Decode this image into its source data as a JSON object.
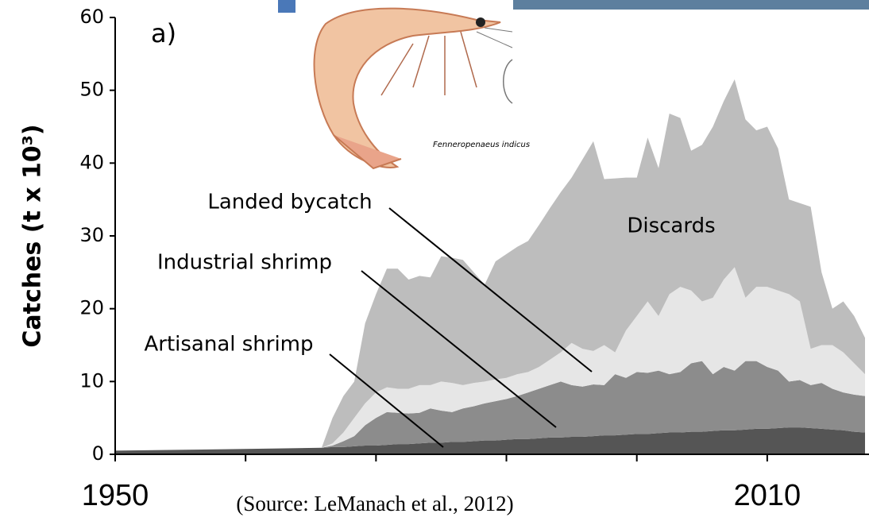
{
  "chart_data": {
    "type": "stacked_area",
    "ylabel": "Catches (t x 10³)",
    "annotations": [
      "a)",
      "Landed bycatch",
      "Industrial shrimp",
      "Artisanal shrimp",
      "Discards"
    ],
    "source": "(Source: LeManach et al., 2012)",
    "image_caption": "Fenneropenaeus indicus",
    "x": [
      1950,
      1955,
      1960,
      1965,
      1969,
      1970,
      1971,
      1972,
      1973,
      1974,
      1975,
      1976,
      1977,
      1978,
      1979,
      1980,
      1981,
      1982,
      1983,
      1984,
      1985,
      1986,
      1987,
      1988,
      1989,
      1990,
      1991,
      1992,
      1993,
      1994,
      1995,
      1996,
      1997,
      1998,
      1999,
      2000,
      2001,
      2002,
      2003,
      2004,
      2005,
      2006,
      2007,
      2008,
      2009,
      2010,
      2011,
      2012,
      2013,
      2014,
      2015,
      2016,
      2017,
      2018,
      2019
    ],
    "series": [
      {
        "name": "Artisanal shrimp",
        "color": "#555555",
        "values": [
          0.5,
          0.6,
          0.7,
          0.8,
          0.9,
          1.0,
          1.0,
          1.1,
          1.2,
          1.2,
          1.3,
          1.4,
          1.4,
          1.5,
          1.6,
          1.6,
          1.7,
          1.7,
          1.8,
          1.9,
          1.9,
          2.0,
          2.1,
          2.1,
          2.2,
          2.3,
          2.3,
          2.4,
          2.4,
          2.5,
          2.6,
          2.6,
          2.7,
          2.8,
          2.8,
          2.9,
          3.0,
          3.0,
          3.1,
          3.1,
          3.2,
          3.3,
          3.3,
          3.4,
          3.5,
          3.5,
          3.6,
          3.7,
          3.7,
          3.6,
          3.5,
          3.4,
          3.3,
          3.1,
          3.0
        ]
      },
      {
        "name": "Industrial shrimp",
        "color": "#8c8c8c",
        "values": [
          0,
          0,
          0,
          0,
          0,
          0.2,
          0.8,
          1.4,
          2.8,
          3.8,
          4.5,
          4.3,
          4.2,
          4.2,
          4.7,
          4.4,
          4.1,
          4.6,
          4.8,
          5.1,
          5.4,
          5.6,
          5.9,
          6.4,
          6.8,
          7.2,
          7.7,
          7.1,
          6.9,
          7.1,
          6.9,
          8.4,
          7.8,
          8.5,
          8.4,
          8.6,
          8.0,
          8.3,
          9.4,
          9.7,
          7.8,
          8.7,
          8.2,
          9.4,
          9.3,
          8.5,
          7.9,
          6.3,
          6.5,
          5.9,
          6.3,
          5.6,
          5.2,
          5.1,
          5.0
        ]
      },
      {
        "name": "Landed bycatch",
        "color": "#e6e6e6",
        "values": [
          0,
          0,
          0,
          0,
          0,
          0.3,
          1.2,
          2.5,
          3,
          3.5,
          3.4,
          3.3,
          3.4,
          3.8,
          3.2,
          4,
          4,
          3.2,
          3.2,
          3,
          3,
          2.9,
          3,
          2.8,
          3,
          3.5,
          4,
          5.8,
          5.2,
          4.6,
          5.5,
          3,
          6.5,
          7.7,
          9.8,
          7.5,
          11,
          11.7,
          10,
          8.2,
          10.5,
          12,
          14.2,
          8.7,
          10.2,
          11,
          11,
          12,
          10.8,
          5,
          5.2,
          6,
          5.5,
          4.3,
          3
        ]
      },
      {
        "name": "Discards",
        "color": "#bdbdbd",
        "values": [
          0,
          0,
          0,
          0,
          0,
          3.5,
          5,
          5,
          11,
          13.5,
          16.3,
          16.5,
          15,
          15,
          14.8,
          17.2,
          17.2,
          17.2,
          15.2,
          13.3,
          16.2,
          17,
          17.5,
          18,
          19.5,
          20.8,
          22,
          22.7,
          26,
          28.8,
          22.8,
          23.9,
          21,
          19,
          22.5,
          20.3,
          24.8,
          23.2,
          19.2,
          21.5,
          23.5,
          24.5,
          25.8,
          24.5,
          21.5,
          22,
          19.5,
          13,
          13.5,
          19.5,
          10,
          5,
          7,
          6.5,
          5
        ]
      }
    ],
    "xlim": [
      1950,
      2019
    ],
    "xticks": [
      1950,
      {
        "value": 1962,
        "label": null
      },
      {
        "value": 1974,
        "label": null
      },
      {
        "value": 1986,
        "label": null
      },
      {
        "value": 1998,
        "label": null
      },
      2010
    ],
    "ylim": [
      0,
      60
    ],
    "yticks": [
      0,
      10,
      20,
      30,
      40,
      50,
      60
    ],
    "grid": false
  }
}
